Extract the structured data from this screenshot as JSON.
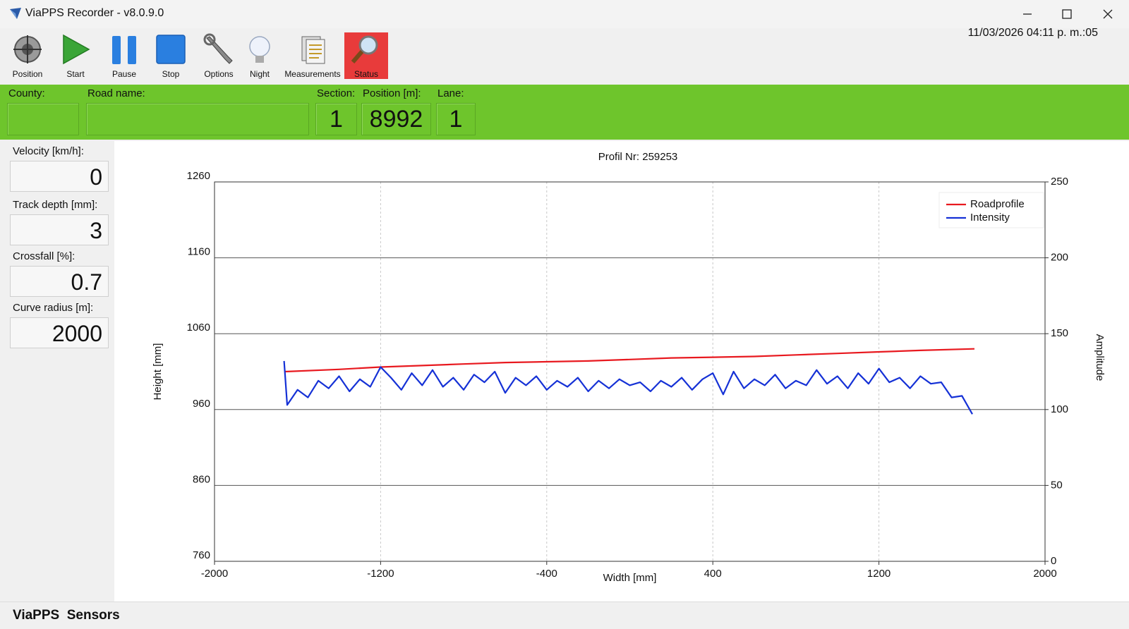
{
  "window": {
    "title": "ViaPPS Recorder - v8.0.9.0"
  },
  "toolbar": [
    "Position",
    "Start",
    "Pause",
    "Stop",
    "Options",
    "Night",
    "Measurements",
    "Status"
  ],
  "datetime": "11/03/2026  04:11 p. m.:05",
  "fields": [
    {
      "label": "County:"
    },
    {
      "label": "Road name:"
    },
    {
      "label": "Section:",
      "value": 1
    },
    {
      "label": "Position [m]:",
      "value": 8992
    },
    {
      "label": "Lane:",
      "value": 1
    }
  ],
  "readings": [
    {
      "label": "Velocity [km/h]:",
      "value": 0
    },
    {
      "label": "Track depth [mm]:",
      "value": 3
    },
    {
      "label": "Crossfall [%]:",
      "value": 0.7
    },
    {
      "label": "Curve radius [m]:",
      "value": 2000
    }
  ],
  "status_bar": "ViaPPS  Sensors",
  "chart_data": {
    "type": "line",
    "title": "Profil Nr: 259253",
    "x_label": "Width [mm]",
    "y_label": "Height [mm]",
    "y2_label": "Amplitude",
    "xlim": [
      -2000,
      2000
    ],
    "xticks": [
      -2000,
      -1200,
      -400,
      400,
      1200,
      2000
    ],
    "ylim": [
      760,
      1260
    ],
    "yticks": [
      760,
      860,
      960,
      1060,
      1160,
      1260
    ],
    "y2lim": [
      0,
      250
    ],
    "y2ticks": [
      0,
      50,
      100,
      150,
      200,
      250
    ],
    "grid": true,
    "legend": "top-right",
    "series": [
      {
        "name": "Roadprofile",
        "color": "#e8191f",
        "axis": "y",
        "x": [
          -1660,
          -1400,
          -1200,
          -1000,
          -800,
          -600,
          -400,
          -200,
          0,
          200,
          400,
          600,
          800,
          1000,
          1200,
          1400,
          1660
        ],
        "values": [
          1010,
          1013,
          1016,
          1018,
          1020,
          1022,
          1023,
          1024,
          1026,
          1028,
          1029,
          1030,
          1032,
          1034,
          1036,
          1038,
          1040
        ]
      },
      {
        "name": "Intensity",
        "color": "#1531d6",
        "axis": "y2",
        "x": [
          -1665,
          -1650,
          -1600,
          -1550,
          -1500,
          -1450,
          -1400,
          -1350,
          -1300,
          -1250,
          -1200,
          -1150,
          -1100,
          -1050,
          -1000,
          -950,
          -900,
          -850,
          -800,
          -750,
          -700,
          -650,
          -600,
          -550,
          -500,
          -450,
          -400,
          -350,
          -300,
          -250,
          -200,
          -150,
          -100,
          -50,
          0,
          50,
          100,
          150,
          200,
          250,
          300,
          350,
          400,
          450,
          500,
          550,
          600,
          650,
          700,
          750,
          800,
          850,
          900,
          950,
          1000,
          1050,
          1100,
          1150,
          1200,
          1250,
          1300,
          1350,
          1400,
          1450,
          1500,
          1550,
          1600,
          1650
        ],
        "values": [
          132,
          103,
          113,
          108,
          119,
          114,
          122,
          112,
          120,
          115,
          128,
          121,
          113,
          124,
          116,
          126,
          115,
          121,
          113,
          123,
          118,
          125,
          111,
          121,
          116,
          122,
          113,
          119,
          115,
          121,
          112,
          119,
          114,
          120,
          116,
          118,
          112,
          119,
          115,
          121,
          113,
          120,
          124,
          110,
          125,
          114,
          120,
          116,
          123,
          114,
          119,
          116,
          126,
          117,
          122,
          114,
          124,
          117,
          127,
          118,
          121,
          114,
          122,
          117,
          118,
          108,
          109,
          97
        ]
      }
    ]
  }
}
